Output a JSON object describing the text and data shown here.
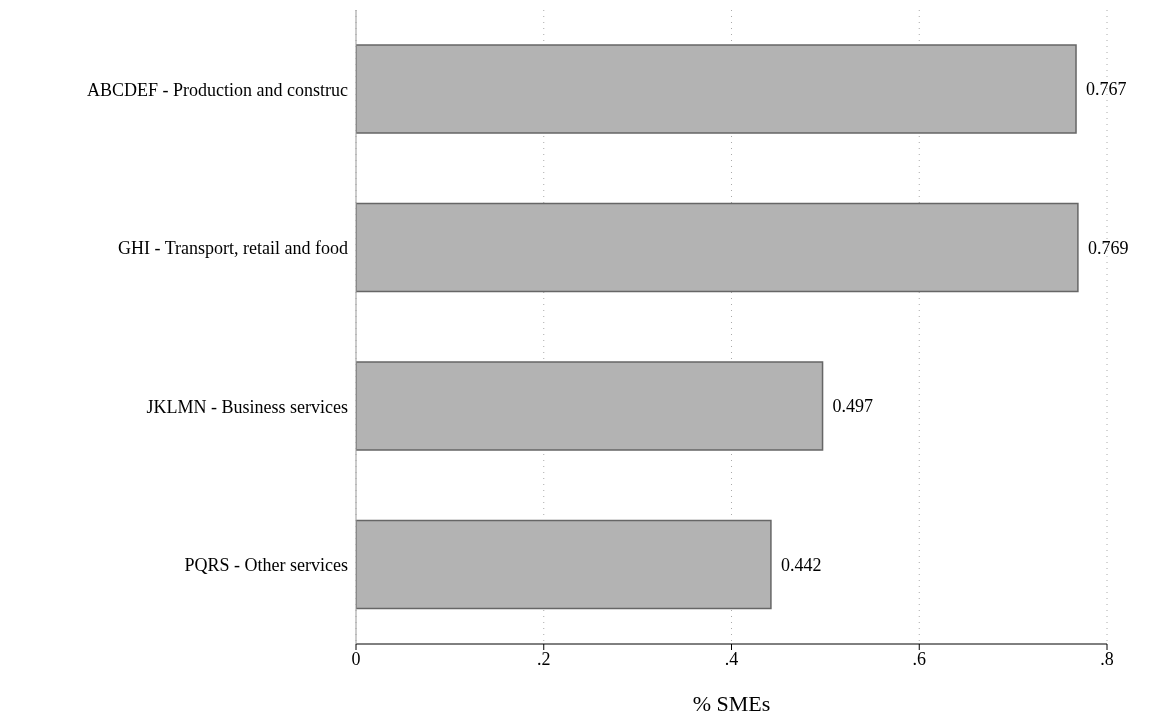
{
  "chart_data": {
    "type": "bar",
    "orientation": "horizontal",
    "xlabel": "% SMEs",
    "categories": [
      "ABCDEF - Production and construc",
      "GHI - Transport, retail and food",
      "JKLMN - Business services",
      "PQRS - Other services"
    ],
    "values": [
      0.767,
      0.769,
      0.497,
      0.442
    ],
    "color": "#b3b3b3",
    "xlim": [
      0,
      0.8
    ],
    "xticks": [
      0,
      {
        "value": 0.2,
        "label": ".2"
      },
      {
        "value": 0.4,
        "label": ".4"
      },
      {
        "value": 0.6,
        "label": ".6"
      },
      {
        "value": 0.8,
        "label": ".8"
      }
    ],
    "grid": "x",
    "data_labels": true
  }
}
